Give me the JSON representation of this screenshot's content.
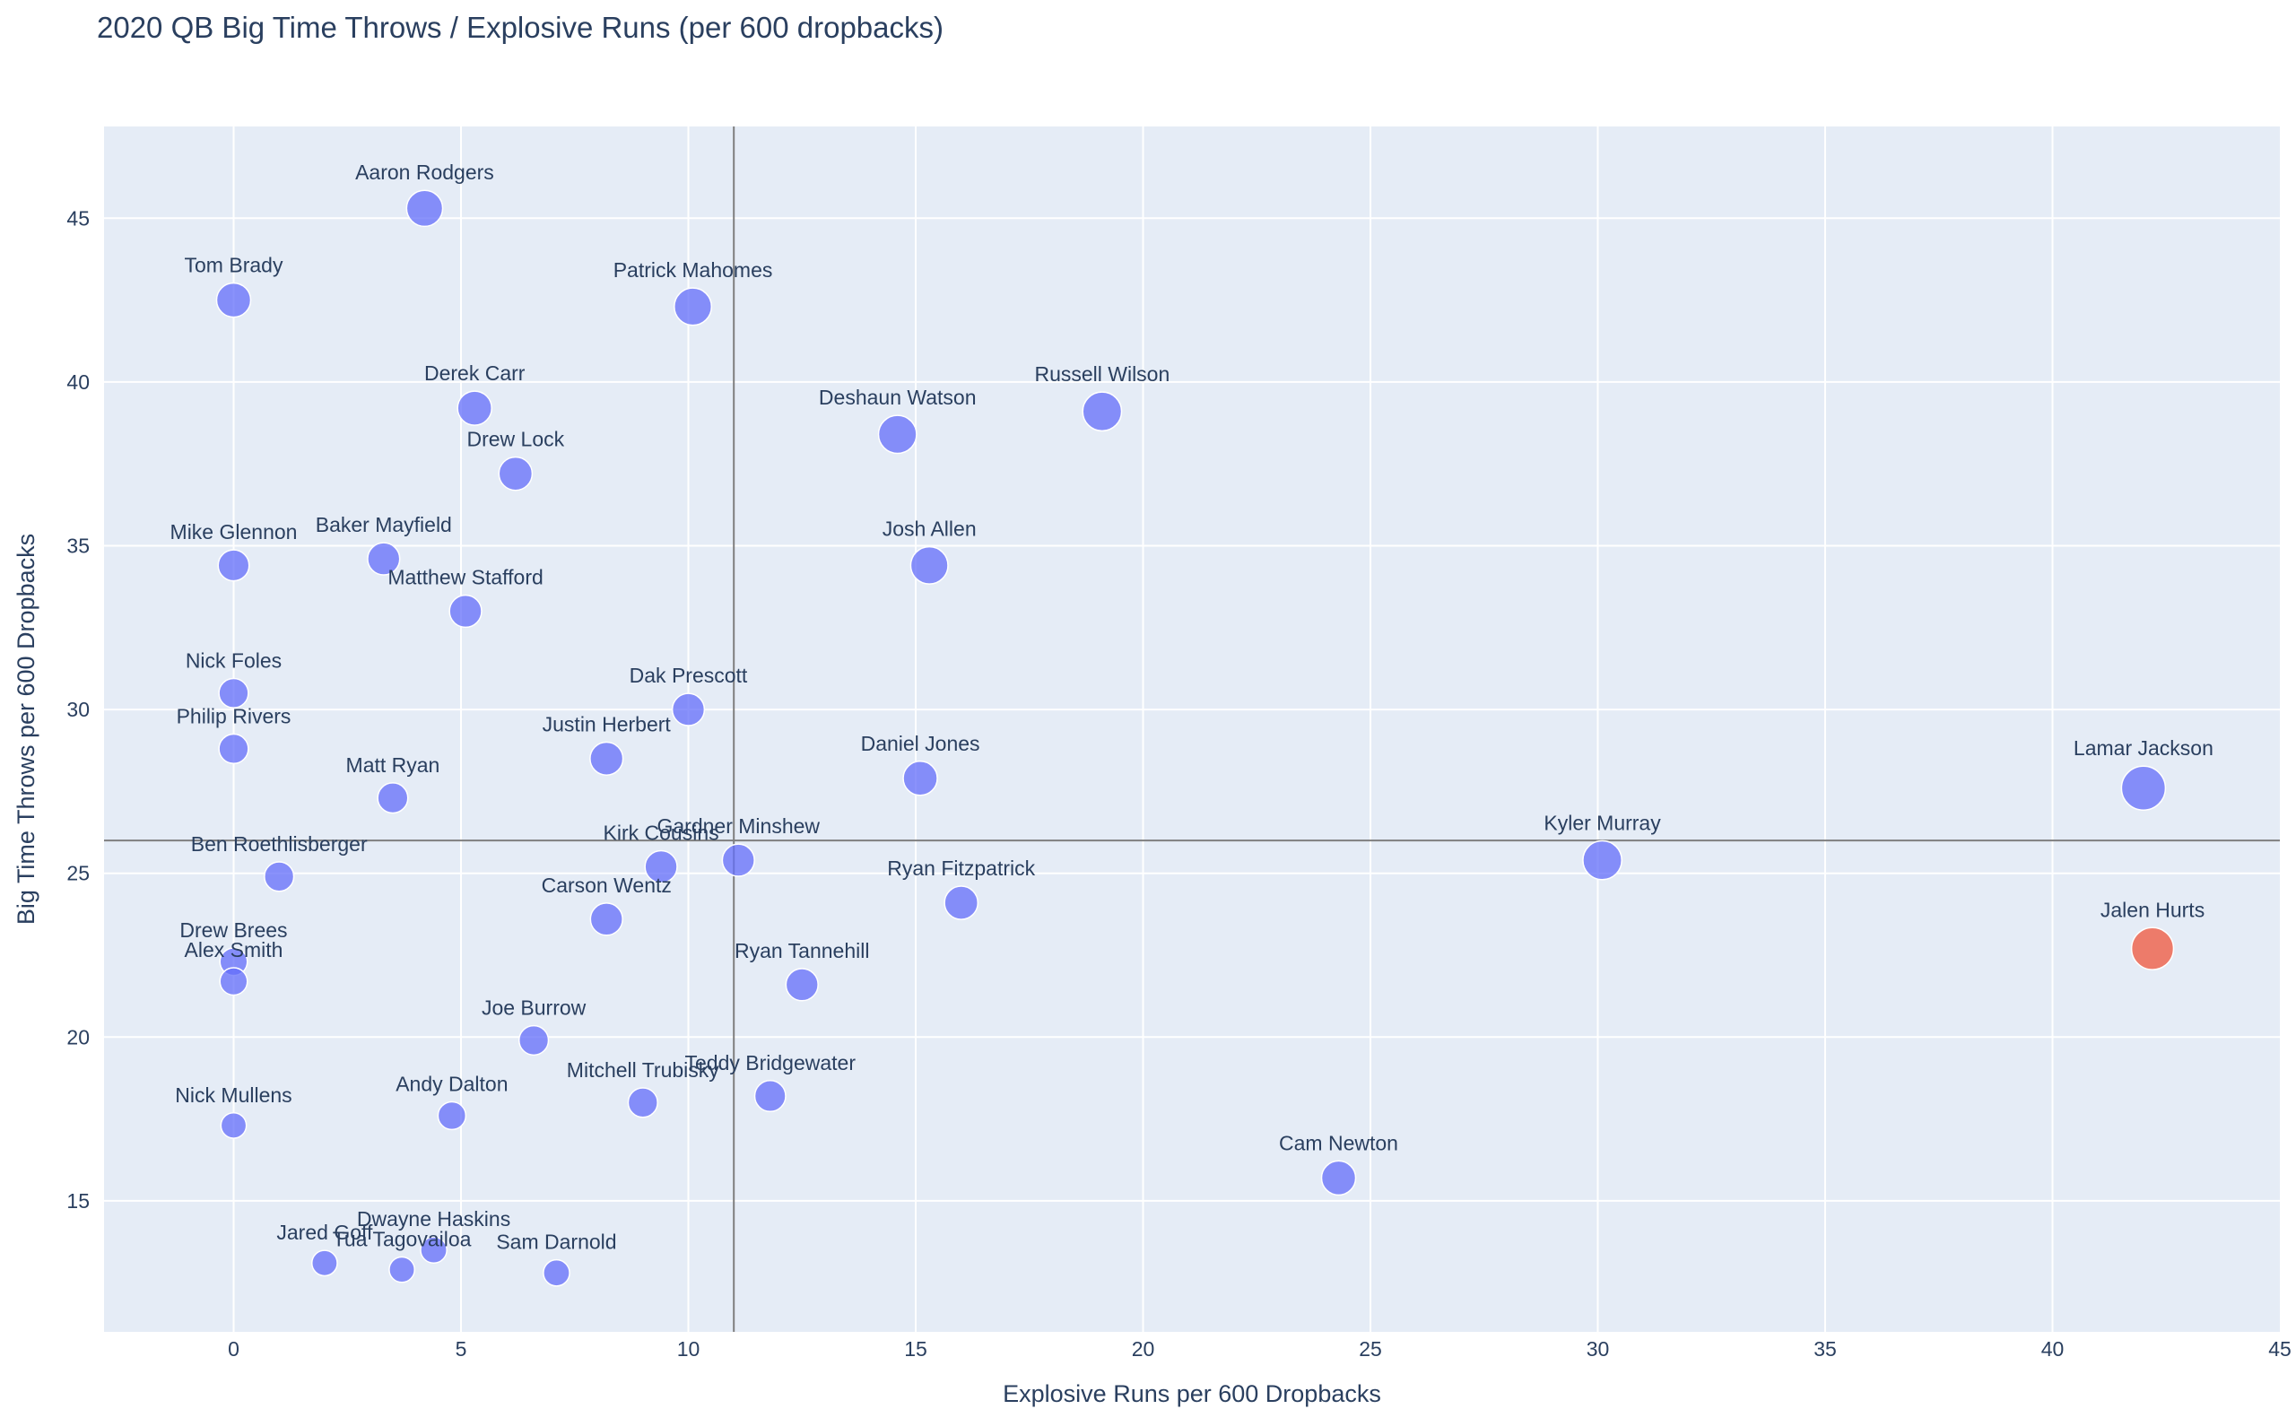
{
  "chart_data": {
    "type": "scatter",
    "title": "2020 QB Big Time Throws / Explosive Runs (per 600 dropbacks)",
    "xlabel": "Explosive Runs per 600 Dropbacks",
    "ylabel": "Big Time Throws per 600 Dropbacks",
    "xlim": [
      -2.85,
      45
    ],
    "ylim": [
      11.0,
      47.8
    ],
    "xticks": [
      0,
      5,
      10,
      15,
      20,
      25,
      30,
      35,
      40,
      45
    ],
    "yticks": [
      15,
      20,
      25,
      30,
      35,
      40,
      45
    ],
    "reference_lines": {
      "x": 11.0,
      "y": 26.0
    },
    "colors": {
      "plot_bg": "#e5ecf6",
      "default_marker": "#636efa",
      "highlight_marker": "#ef553b",
      "text": "#2a3f5f",
      "ref_line": "#7f7f7f"
    },
    "points": [
      {
        "name": "Aaron Rodgers",
        "x": 4.2,
        "y": 45.3,
        "size": 0.55
      },
      {
        "name": "Tom Brady",
        "x": 0.0,
        "y": 42.5,
        "size": 0.5
      },
      {
        "name": "Patrick Mahomes",
        "x": 10.1,
        "y": 42.3,
        "size": 0.58
      },
      {
        "name": "Derek Carr",
        "x": 5.3,
        "y": 39.2,
        "size": 0.5
      },
      {
        "name": "Russell Wilson",
        "x": 19.1,
        "y": 39.1,
        "size": 0.62
      },
      {
        "name": "Deshaun Watson",
        "x": 14.6,
        "y": 38.4,
        "size": 0.6
      },
      {
        "name": "Drew Lock",
        "x": 6.2,
        "y": 37.2,
        "size": 0.48
      },
      {
        "name": "Mike Glennon",
        "x": 0.0,
        "y": 34.4,
        "size": 0.42
      },
      {
        "name": "Baker Mayfield",
        "x": 3.3,
        "y": 34.6,
        "size": 0.45
      },
      {
        "name": "Josh Allen",
        "x": 15.3,
        "y": 34.4,
        "size": 0.58
      },
      {
        "name": "Matthew Stafford",
        "x": 5.1,
        "y": 33.0,
        "size": 0.45
      },
      {
        "name": "Nick Foles",
        "x": 0.0,
        "y": 30.5,
        "size": 0.38
      },
      {
        "name": "Dak Prescott",
        "x": 10.0,
        "y": 30.0,
        "size": 0.45
      },
      {
        "name": "Philip Rivers",
        "x": 0.0,
        "y": 28.8,
        "size": 0.38
      },
      {
        "name": "Justin Herbert",
        "x": 8.2,
        "y": 28.5,
        "size": 0.47
      },
      {
        "name": "Daniel Jones",
        "x": 15.1,
        "y": 27.9,
        "size": 0.5
      },
      {
        "name": "Lamar Jackson",
        "x": 42.0,
        "y": 27.6,
        "size": 0.75
      },
      {
        "name": "Matt Ryan",
        "x": 3.5,
        "y": 27.3,
        "size": 0.4
      },
      {
        "name": "Kyler Murray",
        "x": 30.1,
        "y": 25.4,
        "size": 0.62
      },
      {
        "name": "Gardner Minshew",
        "x": 11.1,
        "y": 25.4,
        "size": 0.45
      },
      {
        "name": "Kirk Cousins",
        "x": 9.4,
        "y": 25.2,
        "size": 0.45
      },
      {
        "name": "Ben Roethlisberger",
        "x": 1.0,
        "y": 24.9,
        "size": 0.38
      },
      {
        "name": "Ryan Fitzpatrick",
        "x": 16.0,
        "y": 24.1,
        "size": 0.48
      },
      {
        "name": "Carson Wentz",
        "x": 8.2,
        "y": 23.6,
        "size": 0.45
      },
      {
        "name": "Jalen Hurts",
        "x": 42.2,
        "y": 22.7,
        "size": 0.7,
        "highlight": true
      },
      {
        "name": "Drew Brees",
        "x": 0.0,
        "y": 22.3,
        "size": 0.33
      },
      {
        "name": "Alex Smith",
        "x": 0.0,
        "y": 21.7,
        "size": 0.33
      },
      {
        "name": "Ryan Tannehill",
        "x": 12.5,
        "y": 21.6,
        "size": 0.45
      },
      {
        "name": "Joe Burrow",
        "x": 6.6,
        "y": 19.9,
        "size": 0.38
      },
      {
        "name": "Teddy Bridgewater",
        "x": 11.8,
        "y": 18.2,
        "size": 0.42
      },
      {
        "name": "Mitchell Trubisky",
        "x": 9.0,
        "y": 18.0,
        "size": 0.38
      },
      {
        "name": "Andy Dalton",
        "x": 4.8,
        "y": 17.6,
        "size": 0.34
      },
      {
        "name": "Nick Mullens",
        "x": 0.0,
        "y": 17.3,
        "size": 0.28
      },
      {
        "name": "Cam Newton",
        "x": 24.3,
        "y": 15.7,
        "size": 0.5
      },
      {
        "name": "Dwayne Haskins",
        "x": 4.4,
        "y": 13.5,
        "size": 0.3
      },
      {
        "name": "Jared Goff",
        "x": 2.0,
        "y": 13.1,
        "size": 0.28
      },
      {
        "name": "Tua Tagovailoa",
        "x": 3.7,
        "y": 12.9,
        "size": 0.28
      },
      {
        "name": "Sam Darnold",
        "x": 7.1,
        "y": 12.8,
        "size": 0.3
      }
    ]
  }
}
